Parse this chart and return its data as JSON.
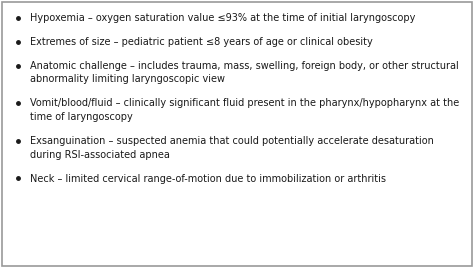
{
  "background_color": "#ffffff",
  "border_color": "#999999",
  "text_color": "#1a1a1a",
  "bullet_color": "#1a1a1a",
  "font_size": 7.0,
  "bullet_items": [
    {
      "lines": [
        "Hypoxemia – oxygen saturation value ≤93% at the time of initial laryngoscopy"
      ]
    },
    {
      "lines": [
        "Extremes of size – pediatric patient ≤8 years of age or clinical obesity"
      ]
    },
    {
      "lines": [
        "Anatomic challenge – includes trauma, mass, swelling, foreign body, or other structural",
        "abnormality limiting laryngoscopic view"
      ]
    },
    {
      "lines": [
        "Vomit/blood/fluid – clinically significant fluid present in the pharynx/hypopharynx at the",
        "time of laryngoscopy"
      ]
    },
    {
      "lines": [
        "Exsanguination – suspected anemia that could potentially accelerate desaturation",
        "during RSI-associated apnea"
      ]
    },
    {
      "lines": [
        "Neck – limited cervical range-of-motion due to immobilization or arthritis"
      ]
    }
  ]
}
